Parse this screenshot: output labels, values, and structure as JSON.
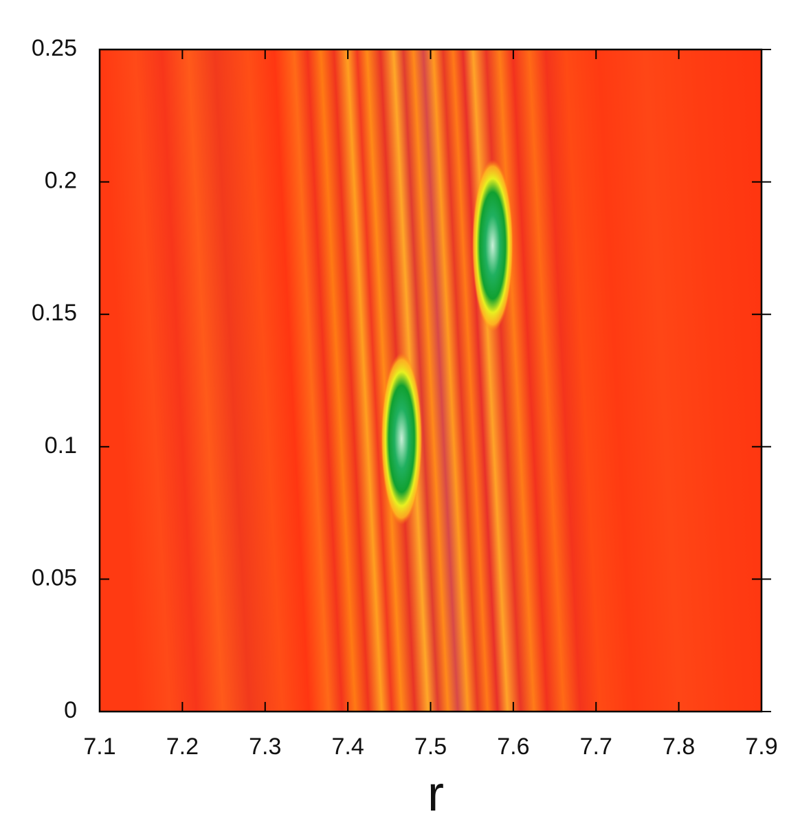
{
  "chart_data": {
    "type": "heatmap",
    "xlabel": "r",
    "xlim": [
      7.1,
      7.9
    ],
    "xticks": [
      7.1,
      7.2,
      7.3,
      7.4,
      7.5,
      7.6,
      7.7,
      7.8,
      7.9
    ],
    "ylim": [
      0,
      0.25
    ],
    "yticks": [
      0,
      0.05,
      0.1,
      0.15,
      0.2,
      0.25
    ],
    "peaks": {
      "x": [
        7.465,
        7.575
      ],
      "y": [
        0.103,
        0.176
      ]
    }
  }
}
